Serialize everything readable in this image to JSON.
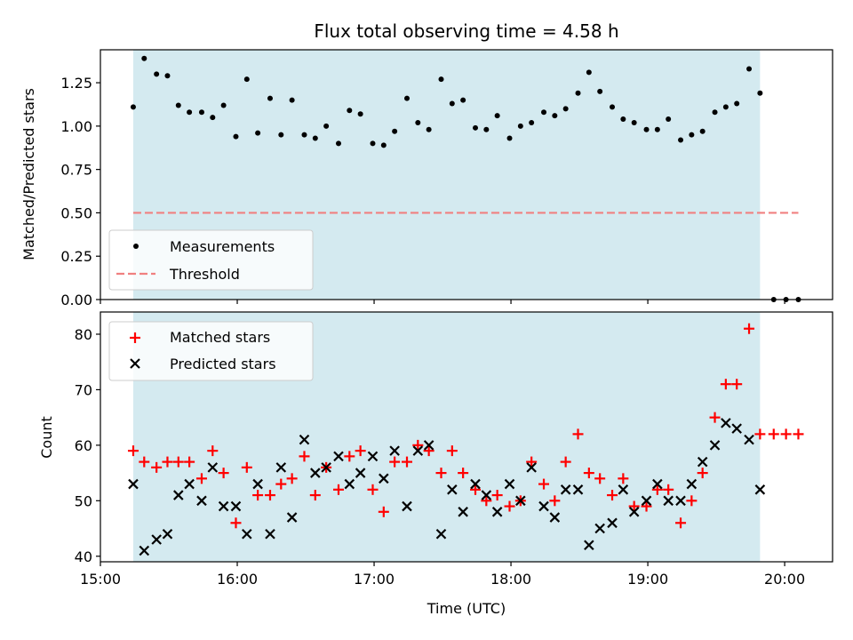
{
  "chart_data": {
    "title": "Flux total observing time = 4.58 h",
    "xlabel": "Time (UTC)",
    "x_unit": "hours",
    "xlim": [
      15.0,
      20.35
    ],
    "x_ticks": [
      {
        "value": 15.0,
        "label": "15:00"
      },
      {
        "value": 16.0,
        "label": "16:00"
      },
      {
        "value": 17.0,
        "label": "17:00"
      },
      {
        "value": 18.0,
        "label": "18:00"
      },
      {
        "value": 19.0,
        "label": "19:00"
      },
      {
        "value": 20.0,
        "label": "20:00"
      }
    ],
    "shaded_region": {
      "start": 15.24,
      "end": 19.82,
      "color": "#d4eaf0"
    },
    "panels": [
      {
        "type": "scatter",
        "ylabel": "Matched/Predicted stars",
        "ylim": [
          0.0,
          1.44
        ],
        "y_ticks": [
          {
            "value": 0.0,
            "label": "0.00"
          },
          {
            "value": 0.25,
            "label": "0.25"
          },
          {
            "value": 0.5,
            "label": "0.50"
          },
          {
            "value": 0.75,
            "label": "0.75"
          },
          {
            "value": 1.0,
            "label": "1.00"
          },
          {
            "value": 1.25,
            "label": "1.25"
          }
        ],
        "legend": {
          "placement": "lower-left",
          "entries": [
            "Measurements",
            "Threshold"
          ]
        },
        "series": [
          {
            "name": "Measurements",
            "marker": "dot",
            "color": "#000000",
            "points": [
              [
                15.24,
                1.11
              ],
              [
                15.32,
                1.39
              ],
              [
                15.41,
                1.3
              ],
              [
                15.49,
                1.29
              ],
              [
                15.57,
                1.12
              ],
              [
                15.65,
                1.08
              ],
              [
                15.74,
                1.08
              ],
              [
                15.82,
                1.05
              ],
              [
                15.9,
                1.12
              ],
              [
                15.99,
                0.94
              ],
              [
                16.07,
                1.27
              ],
              [
                16.15,
                0.96
              ],
              [
                16.24,
                1.16
              ],
              [
                16.32,
                0.95
              ],
              [
                16.4,
                1.15
              ],
              [
                16.49,
                0.95
              ],
              [
                16.57,
                0.93
              ],
              [
                16.65,
                1.0
              ],
              [
                16.74,
                0.9
              ],
              [
                16.82,
                1.09
              ],
              [
                16.9,
                1.07
              ],
              [
                16.99,
                0.9
              ],
              [
                17.07,
                0.89
              ],
              [
                17.15,
                0.97
              ],
              [
                17.24,
                1.16
              ],
              [
                17.32,
                1.02
              ],
              [
                17.4,
                0.98
              ],
              [
                17.49,
                1.27
              ],
              [
                17.57,
                1.13
              ],
              [
                17.65,
                1.15
              ],
              [
                17.74,
                0.99
              ],
              [
                17.82,
                0.98
              ],
              [
                17.9,
                1.06
              ],
              [
                17.99,
                0.93
              ],
              [
                18.07,
                1.0
              ],
              [
                18.15,
                1.02
              ],
              [
                18.24,
                1.08
              ],
              [
                18.32,
                1.06
              ],
              [
                18.4,
                1.1
              ],
              [
                18.49,
                1.19
              ],
              [
                18.57,
                1.31
              ],
              [
                18.65,
                1.2
              ],
              [
                18.74,
                1.11
              ],
              [
                18.82,
                1.04
              ],
              [
                18.9,
                1.02
              ],
              [
                18.99,
                0.98
              ],
              [
                19.07,
                0.98
              ],
              [
                19.15,
                1.04
              ],
              [
                19.24,
                0.92
              ],
              [
                19.32,
                0.95
              ],
              [
                19.4,
                0.97
              ],
              [
                19.49,
                1.08
              ],
              [
                19.57,
                1.11
              ],
              [
                19.65,
                1.13
              ],
              [
                19.74,
                1.33
              ],
              [
                19.82,
                1.19
              ],
              [
                19.92,
                0.0
              ],
              [
                20.01,
                0.0
              ],
              [
                20.1,
                0.0
              ]
            ]
          },
          {
            "name": "Threshold",
            "style": "dashed",
            "color": "#f08080",
            "x": [
              15.24,
              20.1
            ],
            "y": [
              0.5,
              0.5
            ]
          }
        ]
      },
      {
        "type": "scatter",
        "ylabel": "Count",
        "ylim": [
          39,
          84
        ],
        "y_ticks": [
          {
            "value": 40,
            "label": "40"
          },
          {
            "value": 50,
            "label": "50"
          },
          {
            "value": 60,
            "label": "60"
          },
          {
            "value": 70,
            "label": "70"
          },
          {
            "value": 80,
            "label": "80"
          }
        ],
        "legend": {
          "placement": "upper-left",
          "entries": [
            "Matched stars",
            "Predicted stars"
          ]
        },
        "series": [
          {
            "name": "Matched stars",
            "marker": "plus",
            "color": "#ff0000",
            "points": [
              [
                15.24,
                59
              ],
              [
                15.32,
                57
              ],
              [
                15.41,
                56
              ],
              [
                15.49,
                57
              ],
              [
                15.57,
                57
              ],
              [
                15.65,
                57
              ],
              [
                15.74,
                54
              ],
              [
                15.82,
                59
              ],
              [
                15.9,
                55
              ],
              [
                15.99,
                46
              ],
              [
                16.07,
                56
              ],
              [
                16.15,
                51
              ],
              [
                16.24,
                51
              ],
              [
                16.32,
                53
              ],
              [
                16.4,
                54
              ],
              [
                16.49,
                58
              ],
              [
                16.57,
                51
              ],
              [
                16.65,
                56
              ],
              [
                16.74,
                52
              ],
              [
                16.82,
                58
              ],
              [
                16.9,
                59
              ],
              [
                16.99,
                52
              ],
              [
                17.07,
                48
              ],
              [
                17.15,
                57
              ],
              [
                17.24,
                57
              ],
              [
                17.32,
                60
              ],
              [
                17.4,
                59
              ],
              [
                17.49,
                55
              ],
              [
                17.57,
                59
              ],
              [
                17.65,
                55
              ],
              [
                17.74,
                52
              ],
              [
                17.82,
                50
              ],
              [
                17.9,
                51
              ],
              [
                17.99,
                49
              ],
              [
                18.07,
                50
              ],
              [
                18.15,
                57
              ],
              [
                18.24,
                53
              ],
              [
                18.32,
                50
              ],
              [
                18.4,
                57
              ],
              [
                18.49,
                62
              ],
              [
                18.57,
                55
              ],
              [
                18.65,
                54
              ],
              [
                18.74,
                51
              ],
              [
                18.82,
                54
              ],
              [
                18.9,
                49
              ],
              [
                18.99,
                49
              ],
              [
                19.07,
                52
              ],
              [
                19.15,
                52
              ],
              [
                19.24,
                46
              ],
              [
                19.32,
                50
              ],
              [
                19.4,
                55
              ],
              [
                19.49,
                65
              ],
              [
                19.57,
                71
              ],
              [
                19.65,
                71
              ],
              [
                19.74,
                81
              ],
              [
                19.82,
                62
              ],
              [
                19.92,
                62
              ],
              [
                20.01,
                62
              ],
              [
                20.1,
                62
              ]
            ]
          },
          {
            "name": "Predicted stars",
            "marker": "x",
            "color": "#000000",
            "points": [
              [
                15.24,
                53
              ],
              [
                15.32,
                41
              ],
              [
                15.41,
                43
              ],
              [
                15.49,
                44
              ],
              [
                15.57,
                51
              ],
              [
                15.65,
                53
              ],
              [
                15.74,
                50
              ],
              [
                15.82,
                56
              ],
              [
                15.9,
                49
              ],
              [
                15.99,
                49
              ],
              [
                16.07,
                44
              ],
              [
                16.15,
                53
              ],
              [
                16.24,
                44
              ],
              [
                16.32,
                56
              ],
              [
                16.4,
                47
              ],
              [
                16.49,
                61
              ],
              [
                16.57,
                55
              ],
              [
                16.65,
                56
              ],
              [
                16.74,
                58
              ],
              [
                16.82,
                53
              ],
              [
                16.9,
                55
              ],
              [
                16.99,
                58
              ],
              [
                17.07,
                54
              ],
              [
                17.15,
                59
              ],
              [
                17.24,
                49
              ],
              [
                17.32,
                59
              ],
              [
                17.4,
                60
              ],
              [
                17.49,
                44
              ],
              [
                17.57,
                52
              ],
              [
                17.65,
                48
              ],
              [
                17.74,
                53
              ],
              [
                17.82,
                51
              ],
              [
                17.9,
                48
              ],
              [
                17.99,
                53
              ],
              [
                18.07,
                50
              ],
              [
                18.15,
                56
              ],
              [
                18.24,
                49
              ],
              [
                18.32,
                47
              ],
              [
                18.4,
                52
              ],
              [
                18.49,
                52
              ],
              [
                18.57,
                42
              ],
              [
                18.65,
                45
              ],
              [
                18.74,
                46
              ],
              [
                18.82,
                52
              ],
              [
                18.9,
                48
              ],
              [
                18.99,
                50
              ],
              [
                19.07,
                53
              ],
              [
                19.15,
                50
              ],
              [
                19.24,
                50
              ],
              [
                19.32,
                53
              ],
              [
                19.4,
                57
              ],
              [
                19.49,
                60
              ],
              [
                19.57,
                64
              ],
              [
                19.65,
                63
              ],
              [
                19.74,
                61
              ],
              [
                19.82,
                52
              ]
            ]
          }
        ]
      }
    ]
  }
}
